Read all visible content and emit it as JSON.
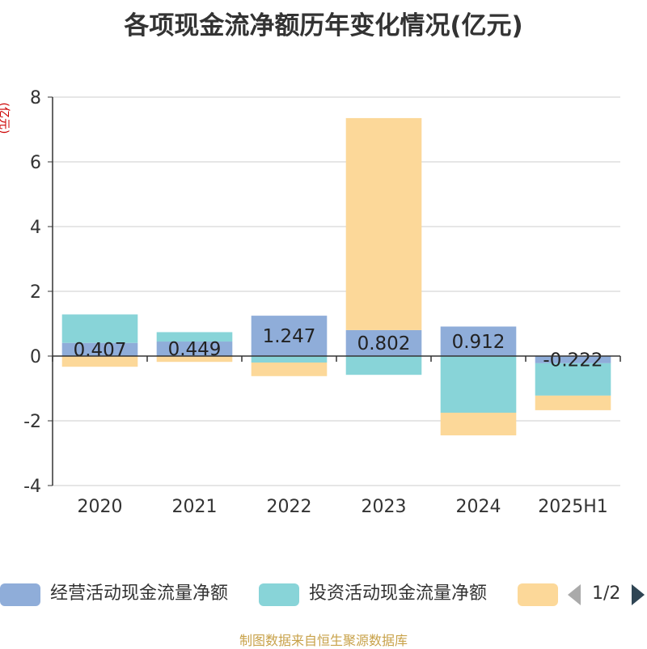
{
  "title": "各项现金流净额历年变化情况(亿元)",
  "source": "制图数据来自恒生聚源数据库",
  "legend_pager": "1/2",
  "chart_data": {
    "type": "bar",
    "stacked": true,
    "title": "各项现金流净额历年变化情况(亿元)",
    "ylabel": "(亿元)",
    "ylim": [
      -4,
      8
    ],
    "yticks": [
      -4,
      -2,
      0,
      2,
      4,
      6,
      8
    ],
    "grid": true,
    "legend_position": "bottom",
    "categories": [
      "2020",
      "2021",
      "2022",
      "2023",
      "2024",
      "2025H1"
    ],
    "series": [
      {
        "name": "经营活动现金流量净额",
        "color": "#8fadd9",
        "values": [
          0.407,
          0.449,
          1.247,
          0.802,
          0.912,
          -0.222
        ],
        "labels": [
          "0.407",
          "0.449",
          "1.247",
          "0.802",
          "0.912",
          "-0.222"
        ]
      },
      {
        "name": "投资活动现金流量净额",
        "color": "#88d4d8",
        "values": [
          0.88,
          0.29,
          -0.2,
          -0.58,
          -1.75,
          -1.0
        ]
      },
      {
        "name": "",
        "color": "#fcd899",
        "values": [
          -0.33,
          -0.18,
          -0.42,
          6.55,
          -0.7,
          -0.45
        ]
      }
    ]
  }
}
